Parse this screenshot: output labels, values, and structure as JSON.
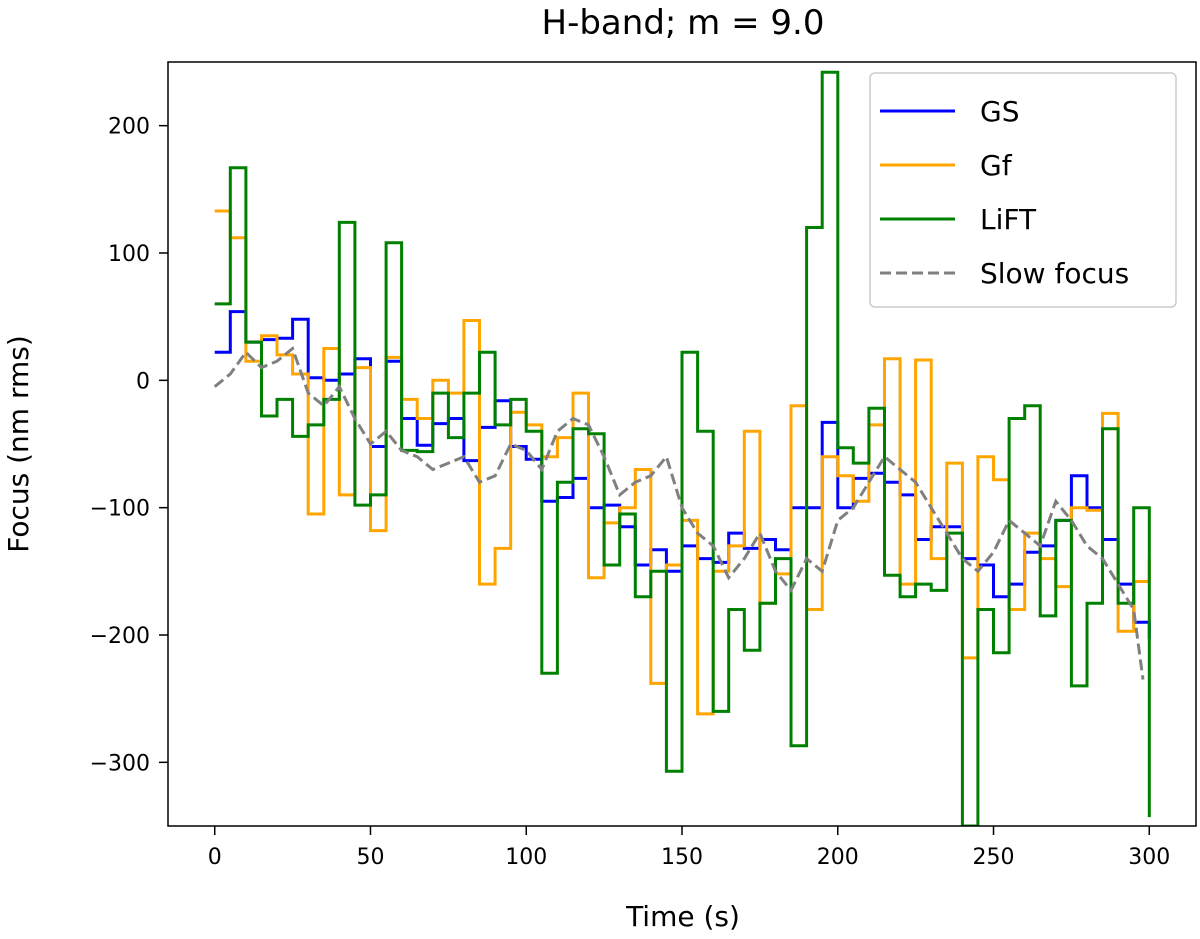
{
  "chart_data": {
    "type": "line",
    "title": "H-band; m = 9.0",
    "xlabel": "Time (s)",
    "ylabel": "Focus (nm rms)",
    "xlim": [
      -15,
      315
    ],
    "ylim": [
      -350,
      250
    ],
    "xticks": [
      0,
      50,
      100,
      150,
      200,
      250,
      300
    ],
    "yticks": [
      -300,
      -200,
      -100,
      0,
      100,
      200
    ],
    "xtick_labels": [
      "0",
      "50",
      "100",
      "150",
      "200",
      "250",
      "300"
    ],
    "ytick_labels": [
      "−300",
      "−200",
      "−100",
      "0",
      "100",
      "200"
    ],
    "grid": false,
    "legend_position": "top-right",
    "series": [
      {
        "name": "GS",
        "color": "#0000ff",
        "style": "steps",
        "x": [
          0,
          5,
          10,
          15,
          20,
          25,
          30,
          35,
          40,
          45,
          50,
          55,
          60,
          65,
          70,
          75,
          80,
          85,
          90,
          95,
          100,
          105,
          110,
          115,
          120,
          125,
          130,
          135,
          140,
          145,
          150,
          155,
          160,
          165,
          170,
          175,
          180,
          185,
          190,
          195,
          200,
          205,
          210,
          215,
          220,
          225,
          230,
          235,
          240,
          245,
          250,
          255,
          260,
          265,
          270,
          275,
          280,
          285,
          290,
          295,
          300
        ],
        "y": [
          22,
          54,
          30,
          32,
          33,
          48,
          2,
          0,
          5,
          17,
          -52,
          15,
          -30,
          -51,
          -34,
          -30,
          -63,
          -37,
          -16,
          -52,
          -62,
          -95,
          -92,
          -77,
          -100,
          -98,
          -115,
          -145,
          -133,
          -150,
          -130,
          -140,
          -143,
          -120,
          -132,
          -125,
          -133,
          -100,
          -100,
          -33,
          -100,
          -77,
          -73,
          -80,
          -90,
          -125,
          -115,
          -115,
          -140,
          -145,
          -170,
          -160,
          -135,
          -130,
          -110,
          -75,
          -100,
          -125,
          -160,
          -190,
          -203
        ]
      },
      {
        "name": "Gf",
        "color": "#ffa500",
        "style": "steps",
        "x": [
          0,
          5,
          10,
          15,
          20,
          25,
          30,
          35,
          40,
          45,
          50,
          55,
          60,
          65,
          70,
          75,
          80,
          85,
          90,
          95,
          100,
          105,
          110,
          115,
          120,
          125,
          130,
          135,
          140,
          145,
          150,
          155,
          160,
          165,
          170,
          175,
          180,
          185,
          190,
          195,
          200,
          205,
          210,
          215,
          220,
          225,
          230,
          235,
          240,
          245,
          250,
          255,
          260,
          265,
          270,
          275,
          280,
          285,
          290,
          295,
          300
        ],
        "y": [
          133,
          112,
          15,
          35,
          20,
          5,
          -105,
          25,
          -90,
          10,
          -118,
          18,
          -15,
          -30,
          0,
          -10,
          47,
          -160,
          -132,
          -25,
          -35,
          -60,
          -45,
          -10,
          -155,
          -112,
          -100,
          -70,
          -238,
          -145,
          -110,
          -262,
          -150,
          -130,
          -40,
          -175,
          -152,
          -20,
          -180,
          -60,
          -75,
          -95,
          -35,
          17,
          -160,
          16,
          -140,
          -65,
          -218,
          -60,
          -78,
          -180,
          -120,
          -140,
          -162,
          -100,
          -102,
          -26,
          -197,
          -158,
          -140
        ]
      },
      {
        "name": "LiFT",
        "color": "#008000",
        "style": "steps",
        "x": [
          0,
          5,
          10,
          15,
          20,
          25,
          30,
          35,
          40,
          45,
          50,
          55,
          60,
          65,
          70,
          75,
          80,
          85,
          90,
          95,
          100,
          105,
          110,
          115,
          120,
          125,
          130,
          135,
          140,
          145,
          150,
          155,
          160,
          165,
          170,
          175,
          180,
          185,
          190,
          195,
          200,
          205,
          210,
          215,
          220,
          225,
          230,
          235,
          240,
          245,
          250,
          255,
          260,
          265,
          270,
          275,
          280,
          285,
          290,
          295,
          300
        ],
        "y": [
          60,
          167,
          30,
          -28,
          -15,
          -44,
          -35,
          -15,
          124,
          -98,
          -90,
          108,
          -55,
          -56,
          -10,
          -45,
          -10,
          22,
          -35,
          -15,
          -40,
          -230,
          -80,
          -38,
          -42,
          -145,
          -105,
          -170,
          -150,
          -307,
          22,
          -40,
          -260,
          -180,
          -212,
          -175,
          -140,
          -287,
          120,
          242,
          -53,
          -65,
          -22,
          -153,
          -170,
          -160,
          -165,
          -120,
          -350,
          -180,
          -214,
          -30,
          -20,
          -185,
          -110,
          -240,
          -175,
          -38,
          -175,
          -100,
          -343
        ]
      },
      {
        "name": "Slow focus",
        "color": "#808080",
        "style": "dashed",
        "x": [
          0,
          5,
          10,
          15,
          20,
          25,
          30,
          35,
          40,
          45,
          50,
          55,
          60,
          65,
          70,
          75,
          80,
          85,
          90,
          95,
          100,
          105,
          110,
          115,
          120,
          125,
          130,
          135,
          140,
          145,
          150,
          155,
          160,
          165,
          170,
          175,
          180,
          185,
          190,
          195,
          200,
          205,
          210,
          215,
          220,
          225,
          230,
          235,
          240,
          245,
          250,
          255,
          260,
          265,
          270,
          275,
          280,
          285,
          290,
          295,
          298
        ],
        "y": [
          -5,
          5,
          22,
          10,
          15,
          25,
          -10,
          -20,
          -5,
          -30,
          -50,
          -40,
          -55,
          -60,
          -70,
          -65,
          -60,
          -80,
          -75,
          -50,
          -55,
          -70,
          -40,
          -30,
          -35,
          -60,
          -90,
          -80,
          -75,
          -60,
          -100,
          -120,
          -130,
          -155,
          -140,
          -120,
          -150,
          -165,
          -140,
          -150,
          -110,
          -100,
          -80,
          -60,
          -70,
          -80,
          -100,
          -120,
          -140,
          -150,
          -135,
          -110,
          -120,
          -130,
          -95,
          -110,
          -130,
          -140,
          -160,
          -180,
          -235
        ]
      }
    ]
  }
}
